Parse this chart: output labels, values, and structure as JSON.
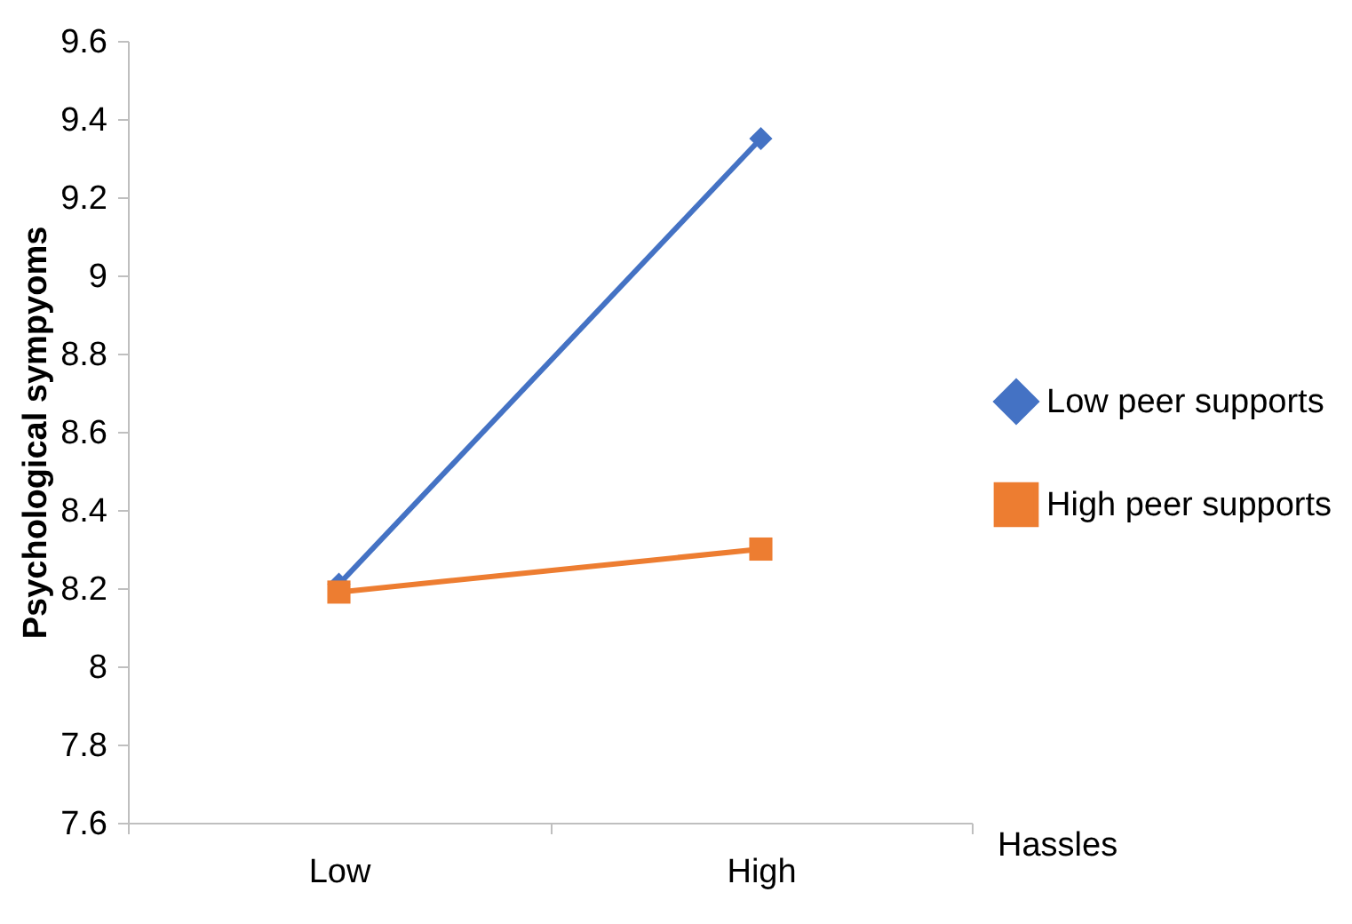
{
  "chart_data": {
    "type": "line",
    "xlabel": "Hassles",
    "ylabel": "Psychological sympyoms",
    "categories": [
      "Low",
      "High"
    ],
    "series": [
      {
        "name": "Low peer supports",
        "color": "#4472c4",
        "values": [
          8.21,
          9.35
        ],
        "marker": "diamond"
      },
      {
        "name": "High peer supports",
        "color": "#ed7d31",
        "values": [
          8.19,
          8.3
        ],
        "marker": "square"
      }
    ],
    "ylim": [
      7.6,
      9.6
    ],
    "yticks": [
      7.6,
      7.8,
      8,
      8.2,
      8.4,
      8.6,
      8.8,
      9,
      9.2,
      9.4,
      9.6
    ],
    "grid": false,
    "legend": "right"
  }
}
